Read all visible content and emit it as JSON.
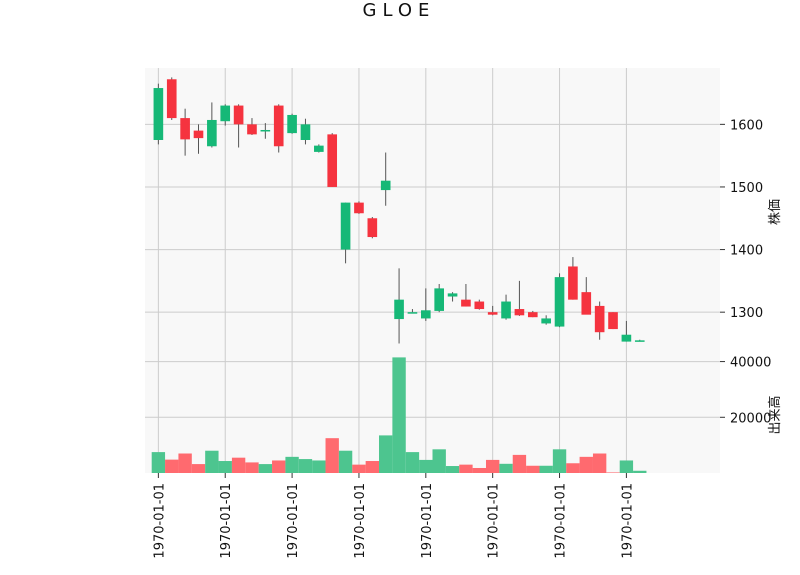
{
  "chart_data": {
    "type": "candlestick",
    "title": "GLOE",
    "colors": {
      "up": "#16b877",
      "down": "#f5333f",
      "volume_up": "#4dc58f",
      "volume_down": "#ff6a6f",
      "wick": "#555555",
      "panel_bg": "#f8f8f8",
      "grid": "#cccccc"
    },
    "price_panel": {
      "ylabel": "株価",
      "ylim": [
        1230,
        1690
      ],
      "yticks": [
        1300,
        1400,
        1500,
        1600
      ],
      "ytick_labels": [
        "1300",
        "1400",
        "1500",
        "1600"
      ]
    },
    "volume_panel": {
      "ylabel": "出来高",
      "ylim": [
        0,
        42000
      ],
      "yticks": [
        20000,
        40000
      ],
      "ytick_labels": [
        "20000",
        "40000"
      ]
    },
    "xlim": [
      -1,
      42
    ],
    "xticks": [
      0,
      5,
      10,
      15,
      20,
      25,
      30,
      35
    ],
    "xtick_labels": [
      "1970-01-01",
      "1970-01-01",
      "1970-01-01",
      "1970-01-01",
      "1970-01-01",
      "1970-01-01",
      "1970-01-01",
      "1970-01-01"
    ],
    "candles": [
      {
        "open": 1575,
        "high": 1665,
        "low": 1568,
        "close": 1658,
        "volume": 7500
      },
      {
        "open": 1672,
        "high": 1675,
        "low": 1607,
        "close": 1610,
        "volume": 4800
      },
      {
        "open": 1610,
        "high": 1625,
        "low": 1550,
        "close": 1576,
        "volume": 7000
      },
      {
        "open": 1590,
        "high": 1600,
        "low": 1553,
        "close": 1578,
        "volume": 3200
      },
      {
        "open": 1565,
        "high": 1635,
        "low": 1563,
        "close": 1607,
        "volume": 8000
      },
      {
        "open": 1605,
        "high": 1632,
        "low": 1598,
        "close": 1630,
        "volume": 4300
      },
      {
        "open": 1630,
        "high": 1632,
        "low": 1563,
        "close": 1600,
        "volume": 5500
      },
      {
        "open": 1600,
        "high": 1610,
        "low": 1583,
        "close": 1584,
        "volume": 3800
      },
      {
        "open": 1591,
        "high": 1602,
        "low": 1577,
        "close": 1591,
        "volume": 3200
      },
      {
        "open": 1630,
        "high": 1632,
        "low": 1555,
        "close": 1565,
        "volume": 4500
      },
      {
        "open": 1586,
        "high": 1617,
        "low": 1585,
        "close": 1615,
        "volume": 5800
      },
      {
        "open": 1575,
        "high": 1609,
        "low": 1568,
        "close": 1600,
        "volume": 5000
      },
      {
        "open": 1556,
        "high": 1568,
        "low": 1555,
        "close": 1566,
        "volume": 4500
      },
      {
        "open": 1584,
        "high": 1586,
        "low": 1500,
        "close": 1500,
        "volume": 12500
      },
      {
        "open": 1400,
        "high": 1475,
        "low": 1378,
        "close": 1475,
        "volume": 8000
      },
      {
        "open": 1475,
        "high": 1477,
        "low": 1457,
        "close": 1458,
        "volume": 3000
      },
      {
        "open": 1450,
        "high": 1452,
        "low": 1418,
        "close": 1420,
        "volume": 4300
      },
      {
        "open": 1495,
        "high": 1555,
        "low": 1470,
        "close": 1510,
        "volume": 13500
      },
      {
        "open": 1289,
        "high": 1370,
        "low": 1250,
        "close": 1320,
        "volume": 41500
      },
      {
        "open": 1300,
        "high": 1305,
        "low": 1300,
        "close": 1300,
        "volume": 7500
      },
      {
        "open": 1290,
        "high": 1338,
        "low": 1286,
        "close": 1303,
        "volume": 4700
      },
      {
        "open": 1302,
        "high": 1345,
        "low": 1300,
        "close": 1338,
        "volume": 8500
      },
      {
        "open": 1325,
        "high": 1332,
        "low": 1317,
        "close": 1330,
        "volume": 2500
      },
      {
        "open": 1320,
        "high": 1345,
        "low": 1309,
        "close": 1309,
        "volume": 3000
      },
      {
        "open": 1317,
        "high": 1320,
        "low": 1304,
        "close": 1305,
        "volume": 1800
      },
      {
        "open": 1300,
        "high": 1310,
        "low": 1295,
        "close": 1296,
        "volume": 4700
      },
      {
        "open": 1290,
        "high": 1328,
        "low": 1288,
        "close": 1317,
        "volume": 3300
      },
      {
        "open": 1305,
        "high": 1350,
        "low": 1294,
        "close": 1295,
        "volume": 6500
      },
      {
        "open": 1300,
        "high": 1302,
        "low": 1292,
        "close": 1292,
        "volume": 2600
      },
      {
        "open": 1282,
        "high": 1295,
        "low": 1280,
        "close": 1290,
        "volume": 2600
      },
      {
        "open": 1277,
        "high": 1362,
        "low": 1276,
        "close": 1356,
        "volume": 8500
      },
      {
        "open": 1373,
        "high": 1388,
        "low": 1320,
        "close": 1320,
        "volume": 3500
      },
      {
        "open": 1332,
        "high": 1356,
        "low": 1297,
        "close": 1296,
        "volume": 5800
      },
      {
        "open": 1310,
        "high": 1317,
        "low": 1256,
        "close": 1268,
        "volume": 7000
      },
      {
        "open": 1300,
        "high": 1300,
        "low": 1273,
        "close": 1273,
        "volume": 200
      },
      {
        "open": 1253,
        "high": 1286,
        "low": 1253,
        "close": 1264,
        "volume": 4500
      },
      {
        "open": 1255,
        "high": 1256,
        "low": 1254,
        "close": 1255,
        "volume": 800
      }
    ]
  }
}
